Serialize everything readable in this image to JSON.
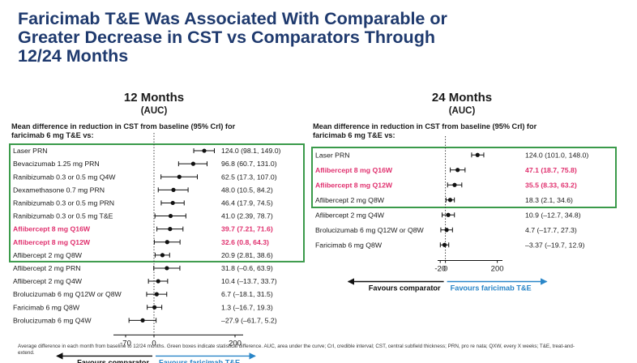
{
  "title": {
    "line1": "Faricimab T&E Was Associated With Comparable or",
    "line2": "Greater Decrease in CST vs Comparators Through",
    "line3": "12/24 Months"
  },
  "footnote": "Average difference in each month from baseline to 12/24 months. Green boxes indicate statistical difference. AUC, area under the curve; CrI, credible interval; CST, central subfield thickness; PRN, pro re nata; QXW, every X weeks; T&E, treat-and-extend.",
  "colors": {
    "title": "#1f3a6e",
    "highlight": "#e0306e",
    "green_box": "#3a9a4a",
    "faricimab_arrow": "#2a86c8",
    "comparator_arrow": "#111111"
  },
  "chart_data": [
    {
      "type": "forest",
      "heading": "12 Months",
      "subheading": "(AUC)",
      "description_line1": "Mean difference in reduction in CST from baseline (95% CrI) for",
      "description_line2": "faricimab 6 mg T&E vs:",
      "xlim": [
        -100,
        220
      ],
      "ticks": [
        -70,
        0,
        200
      ],
      "tick_labels": [
        "-70",
        "0",
        "200"
      ],
      "favours_left": "Favours comparator",
      "favours_right": "Favours faricimab T&E",
      "significant_count": 9,
      "rows": [
        {
          "label": "Laser PRN",
          "value": 124.0,
          "lo": 98.1,
          "hi": 149.0,
          "estimate_text": "124.0 (98.1, 149.0)",
          "highlight": false
        },
        {
          "label": "Bevacizumab 1.25 mg PRN",
          "value": 96.8,
          "lo": 60.7,
          "hi": 131.0,
          "estimate_text": "96.8 (60.7, 131.0)",
          "highlight": false
        },
        {
          "label": "Ranibizumab 0.3 or 0.5 mg Q4W",
          "value": 62.5,
          "lo": 17.3,
          "hi": 107.0,
          "estimate_text": "62.5 (17.3, 107.0)",
          "highlight": false
        },
        {
          "label": "Dexamethasone 0.7 mg PRN",
          "value": 48.0,
          "lo": 10.5,
          "hi": 84.2,
          "estimate_text": "48.0 (10.5, 84.2)",
          "highlight": false
        },
        {
          "label": "Ranibizumab 0.3 or 0.5 mg PRN",
          "value": 46.4,
          "lo": 17.9,
          "hi": 74.5,
          "estimate_text": "46.4 (17.9, 74.5)",
          "highlight": false
        },
        {
          "label": "Ranibizumab 0.3 or 0.5 mg T&E",
          "value": 41.0,
          "lo": 2.39,
          "hi": 78.7,
          "estimate_text": "41.0 (2.39, 78.7)",
          "highlight": false
        },
        {
          "label": "Aflibercept 8 mg Q16W",
          "value": 39.7,
          "lo": 7.21,
          "hi": 71.6,
          "estimate_text": "39.7 (7.21, 71.6)",
          "highlight": true
        },
        {
          "label": "Aflibercept 8 mg Q12W",
          "value": 32.6,
          "lo": 0.8,
          "hi": 64.3,
          "estimate_text": "32.6 (0.8, 64.3)",
          "highlight": true
        },
        {
          "label": "Aflibercept 2 mg Q8W",
          "value": 20.9,
          "lo": 2.81,
          "hi": 38.6,
          "estimate_text": "20.9 (2.81, 38.6)",
          "highlight": false
        },
        {
          "label": "Aflibercept 2 mg PRN",
          "value": 31.8,
          "lo": -0.6,
          "hi": 63.9,
          "estimate_text": "31.8 (–0.6, 63.9)",
          "highlight": false
        },
        {
          "label": "Aflibercept 2 mg Q4W",
          "value": 10.4,
          "lo": -13.7,
          "hi": 33.7,
          "estimate_text": "10.4 (–13.7, 33.7)",
          "highlight": false
        },
        {
          "label": "Brolucizumab 6 mg Q12W or Q8W",
          "value": 6.7,
          "lo": -18.1,
          "hi": 31.5,
          "estimate_text": "6.7 (–18.1, 31.5)",
          "highlight": false
        },
        {
          "label": "Faricimab 6 mg Q8W",
          "value": 1.3,
          "lo": -16.7,
          "hi": 19.3,
          "estimate_text": "1.3 (–16.7, 19.3)",
          "highlight": false
        },
        {
          "label": "Brolucizumab 6 mg Q4W",
          "value": -27.9,
          "lo": -61.7,
          "hi": 5.2,
          "estimate_text": "–27.9 (–61.7, 5.2)",
          "highlight": false
        }
      ]
    },
    {
      "type": "forest",
      "heading": "24 Months",
      "subheading": "(AUC)",
      "description_line1": "Mean difference in reduction in CST from baseline (95% CrI) for",
      "description_line2": "faricimab 6 mg T&E vs:",
      "xlim": [
        -30,
        220
      ],
      "ticks": [
        -20,
        0,
        200
      ],
      "tick_labels": [
        "-20",
        "0",
        "200"
      ],
      "favours_left": "Favours comparator",
      "favours_right": "Favours faricimab T&E",
      "significant_count": 4,
      "rows": [
        {
          "label": "Laser PRN",
          "value": 124.0,
          "lo": 101.0,
          "hi": 148.0,
          "estimate_text": "124.0 (101.0, 148.0)",
          "highlight": false
        },
        {
          "label": "Aflibercept 8 mg Q16W",
          "value": 47.1,
          "lo": 18.7,
          "hi": 75.8,
          "estimate_text": "47.1 (18.7, 75.8)",
          "highlight": true
        },
        {
          "label": "Aflibercept 8 mg Q12W",
          "value": 35.5,
          "lo": 8.33,
          "hi": 63.2,
          "estimate_text": "35.5 (8.33, 63.2)",
          "highlight": true
        },
        {
          "label": "Aflibercept 2 mg Q8W",
          "value": 18.3,
          "lo": 2.1,
          "hi": 34.6,
          "estimate_text": "18.3 (2.1, 34.6)",
          "highlight": false
        },
        {
          "label": "Aflibercept 2 mg Q4W",
          "value": 10.9,
          "lo": -12.7,
          "hi": 34.8,
          "estimate_text": "10.9 (–12.7, 34.8)",
          "highlight": false
        },
        {
          "label": "Brolucizumab 6 mg Q12W or Q8W",
          "value": 4.7,
          "lo": -17.7,
          "hi": 27.3,
          "estimate_text": "4.7 (–17.7, 27.3)",
          "highlight": false
        },
        {
          "label": "Faricimab 6 mg Q8W",
          "value": -3.37,
          "lo": -19.7,
          "hi": 12.9,
          "estimate_text": "–3.37 (–19.7, 12.9)",
          "highlight": false
        }
      ]
    }
  ]
}
